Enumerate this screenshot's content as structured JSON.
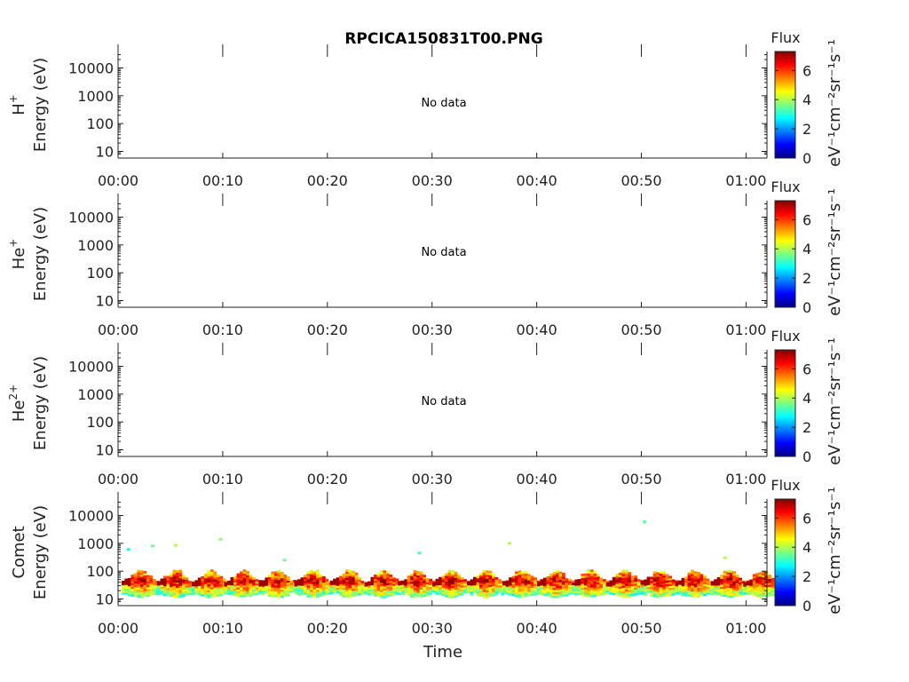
{
  "title": "RPCICA150831T00.PNG",
  "time_label": "Time",
  "x_ticks": [
    "00:00",
    "00:10",
    "00:20",
    "00:30",
    "00:40",
    "00:50",
    "01:00"
  ],
  "x_range_min": [
    0,
    62
  ],
  "y_ticks": [
    "10",
    "100",
    "1000",
    "10000"
  ],
  "y_scale": "log",
  "colorbar": {
    "title": "Flux",
    "label": "eV⁻¹cm⁻²sr⁻¹s⁻¹",
    "ticks": [
      "0",
      "2",
      "4",
      "6"
    ],
    "range": [
      0,
      7.3
    ],
    "colormap": "jet"
  },
  "no_data_text": "No data",
  "chart_data": [
    {
      "type": "heatmap",
      "species_base": "H",
      "species_sup": "+",
      "ylabel": "Energy (eV)",
      "has_data": false
    },
    {
      "type": "heatmap",
      "species_base": "He",
      "species_sup": "+",
      "ylabel": "Energy (eV)",
      "has_data": false
    },
    {
      "type": "heatmap",
      "species_base": "He",
      "species_sup": "2+",
      "ylabel": "Energy (eV)",
      "has_data": false
    },
    {
      "type": "heatmap",
      "species_base": "Comet",
      "species_sup": "",
      "ylabel": "Energy (eV)",
      "has_data": true,
      "burst_times_min": [
        2.2,
        5.6,
        8.9,
        12.0,
        15.3,
        18.7,
        22.1,
        25.4,
        28.6,
        31.9,
        35.2,
        38.6,
        41.9,
        45.2,
        48.5,
        51.8,
        55.1,
        58.5,
        61.6
      ],
      "burst_core_energy_ev": [
        15,
        70
      ],
      "burst_peak_energy_ev": 40,
      "peak_flux": 7,
      "isolated_points": [
        {
          "t": 1.0,
          "e": 600,
          "f": 2.8
        },
        {
          "t": 3.3,
          "e": 800,
          "f": 3.5
        },
        {
          "t": 5.5,
          "e": 850,
          "f": 4.0
        },
        {
          "t": 9.8,
          "e": 1400,
          "f": 3.8
        },
        {
          "t": 15.9,
          "e": 250,
          "f": 3.6
        },
        {
          "t": 28.8,
          "e": 450,
          "f": 3.2
        },
        {
          "t": 37.4,
          "e": 1000,
          "f": 4.0
        },
        {
          "t": 50.3,
          "e": 6000,
          "f": 3.4
        },
        {
          "t": 58.0,
          "e": 300,
          "f": 4.0
        }
      ]
    }
  ]
}
